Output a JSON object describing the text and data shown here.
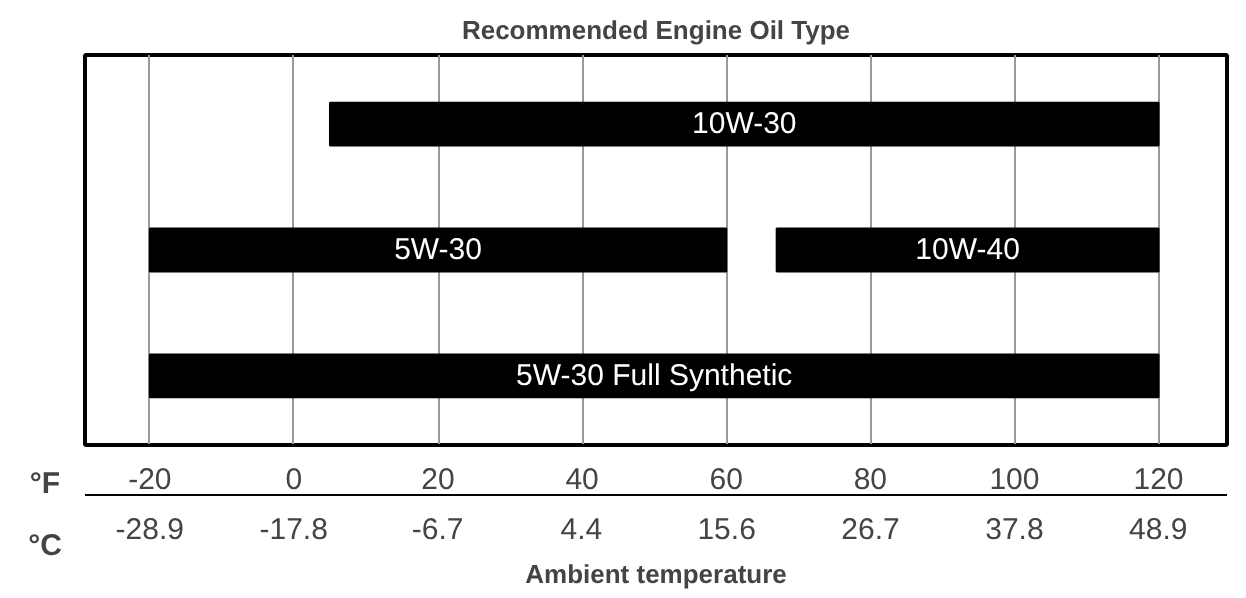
{
  "chart_data": {
    "type": "bar",
    "orientation": "horizontal",
    "title": "Recommended Engine Oil Type",
    "xlabel": "°F",
    "x2label": "°C",
    "annotations": [
      "Ambient temperature"
    ],
    "categories": [
      null,
      null,
      null
    ],
    "series": [
      {
        "name": "10W-30",
        "color": "#000000",
        "values": [
          115,
          null,
          null
        ],
        "base": [
          5,
          null,
          null
        ]
      },
      {
        "name": "5W-30",
        "color": "#000000",
        "values": [
          null,
          80,
          null
        ],
        "base": [
          null,
          -20,
          null
        ]
      },
      {
        "name": "10W-40",
        "color": "#000000",
        "values": [
          null,
          53,
          null
        ],
        "base": [
          null,
          67,
          null
        ]
      },
      {
        "name": "5W-30 Full Synthetic",
        "color": "#000000",
        "values": [
          null,
          null,
          140
        ],
        "base": [
          null,
          null,
          -20
        ]
      }
    ],
    "xlim": [
      -29,
      129.5
    ],
    "xticks": [
      -20,
      0,
      20,
      40,
      60,
      80,
      100,
      120
    ],
    "x2lim": [
      -33.9,
      54.2
    ],
    "x2ticks": [
      -28.9,
      -17.8,
      -6.7,
      4.4,
      15.6,
      26.7,
      37.8,
      48.9
    ],
    "grid": "x"
  }
}
